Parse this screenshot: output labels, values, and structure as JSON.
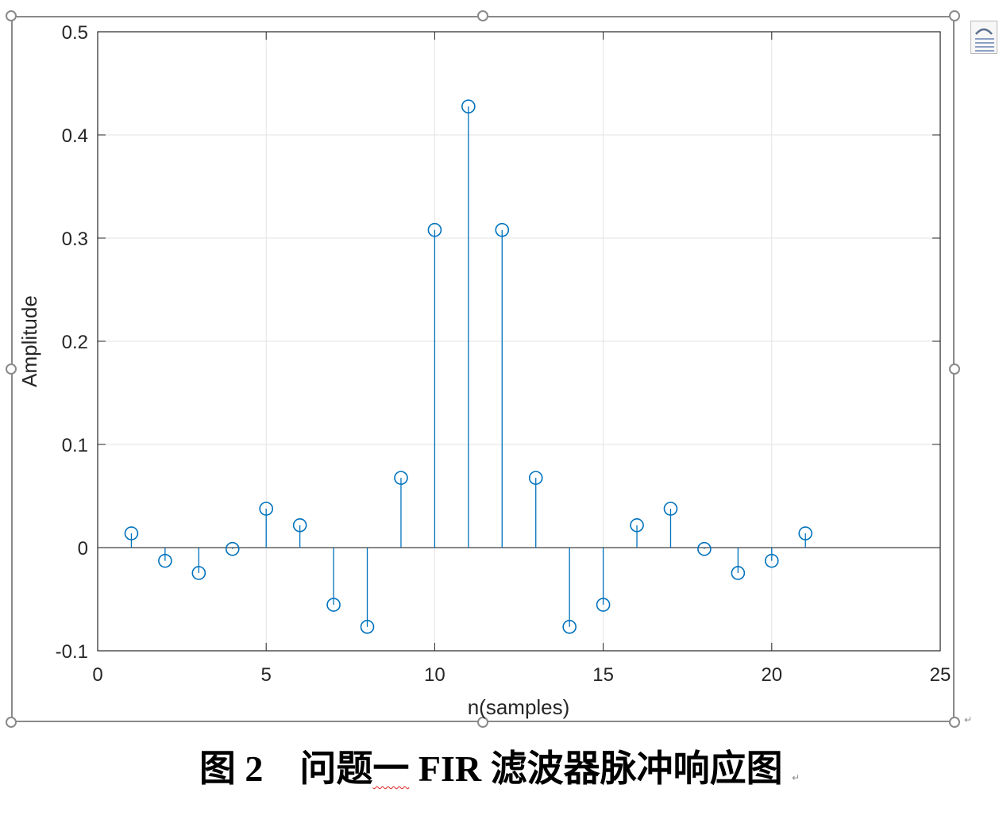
{
  "chart_data": {
    "type": "stem",
    "x": [
      1,
      2,
      3,
      4,
      5,
      6,
      7,
      8,
      9,
      10,
      11,
      12,
      13,
      14,
      15,
      16,
      17,
      18,
      19,
      20,
      21
    ],
    "values": [
      0.0138,
      -0.0128,
      -0.0246,
      -0.0013,
      0.0377,
      0.0217,
      -0.0554,
      -0.0768,
      0.0676,
      0.3079,
      0.4276,
      0.3079,
      0.0676,
      -0.0768,
      -0.0554,
      0.0217,
      0.0377,
      -0.0013,
      -0.0246,
      -0.0128,
      0.0138
    ],
    "xlabel": "n(samples)",
    "ylabel": "Amplitude",
    "xlim": [
      0,
      25
    ],
    "ylim": [
      -0.1,
      0.5
    ],
    "xticks": [
      0,
      5,
      10,
      15,
      20,
      25
    ],
    "xtick_labels": [
      "0",
      "5",
      "10",
      "15",
      "20",
      "25"
    ],
    "yticks": [
      -0.1,
      0,
      0.1,
      0.2,
      0.3,
      0.4,
      0.5
    ],
    "ytick_labels": [
      "-0.1",
      "0",
      "0.1",
      "0.2",
      "0.3",
      "0.4",
      "0.5"
    ],
    "grid": true,
    "stem_color": "#0072BD",
    "baseline_color": "#404040"
  },
  "caption": {
    "figure_label": "图 2",
    "title_part1": "问题",
    "title_squiggle": "一",
    "title_part2": " FIR 滤波器脉冲响应图",
    "para_mark": "↵"
  },
  "editor": {
    "para_mark_right": "↵",
    "layout_options_icon": "layout-options-icon"
  }
}
